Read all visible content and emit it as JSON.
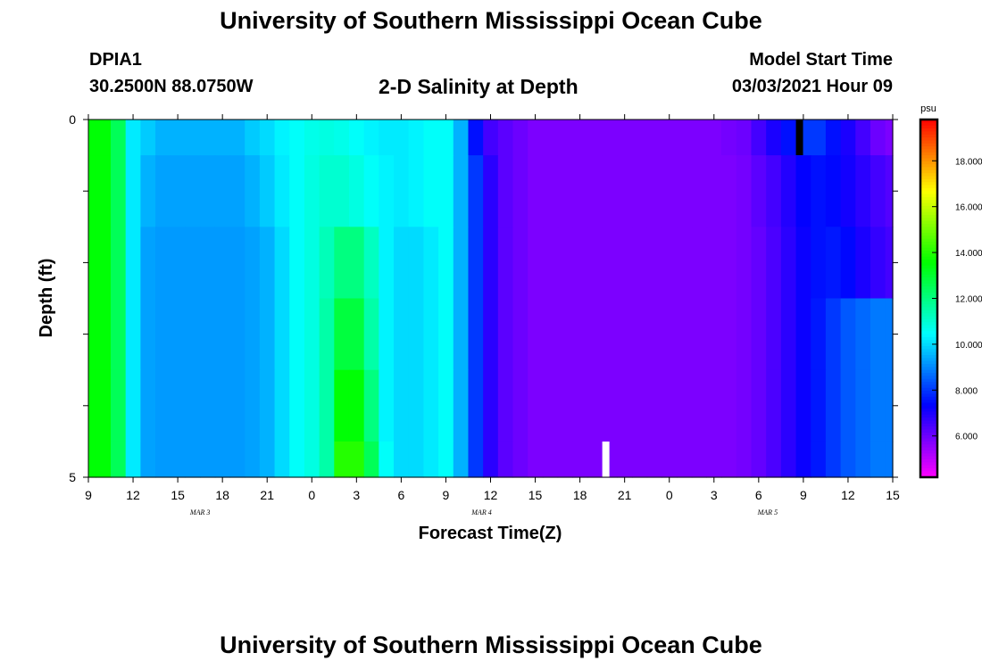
{
  "header": {
    "title": "University of Southern Mississippi Ocean Cube",
    "station": "DPIA1",
    "coords": "30.2500N 88.0750W",
    "chart_title": "2-D Salinity at Depth",
    "model_label": "Model Start Time",
    "model_time": "03/03/2021 Hour 09"
  },
  "footer": {
    "title": "University of Southern Mississippi Ocean Cube"
  },
  "chart_data": {
    "type": "heatmap",
    "title": "2-D Salinity at Depth",
    "xlabel": "Forecast Time(Z)",
    "ylabel": "Depth (ft)",
    "x_tick_labels": [
      "9",
      "12",
      "15",
      "18",
      "21",
      "0",
      "3",
      "6",
      "9",
      "12",
      "15",
      "18",
      "21",
      "0",
      "3",
      "6",
      "9",
      "12",
      "15"
    ],
    "date_labels": [
      "MAR 3",
      "MAR 4",
      "MAR 5"
    ],
    "y_tick_labels": [
      "0",
      "5"
    ],
    "ylim": [
      0,
      5
    ],
    "colorbar": {
      "unit": "psu",
      "range": [
        4.2,
        19.8
      ],
      "tick_labels": [
        "6.000",
        "8.000",
        "10.000",
        "12.000",
        "14.000",
        "16.000",
        "18.000"
      ]
    },
    "time_step_hours": 1,
    "n_times": 55,
    "depth_layers": [
      0,
      1,
      2,
      3,
      4,
      5
    ],
    "values": [
      [
        13.5,
        13.5,
        12.5,
        10.2,
        9.8,
        9.5,
        9.5,
        9.5,
        9.5,
        9.5,
        9.5,
        9.8,
        10.0,
        10.3,
        10.5,
        10.7,
        10.8,
        10.7,
        10.5,
        10.3,
        10.2,
        10.2,
        10.3,
        10.5,
        10.5,
        9.5,
        7.5,
        6.5,
        6.2,
        6.0,
        5.8,
        5.8,
        5.8,
        5.8,
        5.8,
        5.8,
        5.8,
        5.8,
        5.8,
        5.8,
        5.8,
        5.8,
        5.8,
        5.9,
        6.0,
        6.5,
        7.0,
        7.5,
        8.0,
        8.0,
        7.5,
        7.0,
        6.5,
        6.0,
        5.8
      ],
      [
        13.5,
        13.5,
        12.5,
        10.2,
        9.5,
        9.3,
        9.3,
        9.3,
        9.3,
        9.3,
        9.3,
        9.5,
        9.8,
        10.2,
        10.5,
        10.8,
        11.0,
        11.0,
        10.8,
        10.5,
        10.3,
        10.2,
        10.3,
        10.5,
        10.5,
        9.5,
        8.0,
        6.8,
        6.2,
        6.0,
        5.8,
        5.8,
        5.8,
        5.8,
        5.8,
        5.8,
        5.8,
        5.8,
        5.8,
        5.8,
        5.8,
        5.8,
        5.8,
        5.8,
        5.9,
        6.2,
        6.5,
        6.9,
        7.3,
        7.5,
        7.4,
        7.1,
        6.8,
        6.5,
        6.3
      ],
      [
        13.5,
        13.5,
        12.5,
        10.2,
        9.3,
        9.2,
        9.2,
        9.2,
        9.2,
        9.2,
        9.2,
        9.3,
        9.5,
        10.0,
        10.5,
        10.8,
        11.3,
        12.0,
        12.0,
        11.2,
        10.3,
        10.0,
        10.0,
        10.2,
        10.5,
        9.5,
        8.0,
        6.8,
        6.2,
        6.0,
        5.8,
        5.8,
        5.8,
        5.8,
        5.8,
        5.8,
        5.8,
        5.8,
        5.8,
        5.8,
        5.8,
        5.8,
        5.8,
        5.8,
        5.9,
        6.1,
        6.4,
        6.8,
        7.2,
        7.5,
        7.6,
        7.4,
        7.0,
        6.7,
        6.5
      ],
      [
        13.5,
        13.5,
        12.5,
        10.2,
        9.3,
        9.2,
        9.2,
        9.2,
        9.2,
        9.2,
        9.2,
        9.3,
        9.5,
        10.0,
        10.5,
        10.8,
        11.5,
        12.8,
        12.8,
        11.5,
        10.3,
        10.0,
        10.0,
        10.2,
        10.5,
        9.5,
        8.0,
        6.8,
        6.2,
        6.0,
        5.8,
        5.8,
        5.8,
        5.8,
        5.8,
        5.8,
        5.8,
        5.8,
        5.8,
        5.8,
        5.8,
        5.8,
        5.8,
        5.8,
        5.9,
        6.1,
        6.4,
        6.8,
        7.2,
        7.6,
        8.0,
        8.4,
        8.6,
        8.8,
        8.8
      ],
      [
        13.5,
        13.5,
        12.5,
        10.2,
        9.3,
        9.2,
        9.2,
        9.2,
        9.2,
        9.2,
        9.2,
        9.3,
        9.5,
        10.0,
        10.5,
        10.8,
        11.5,
        13.5,
        13.5,
        12.0,
        10.3,
        10.0,
        10.0,
        10.2,
        10.5,
        9.5,
        8.0,
        6.8,
        6.2,
        6.0,
        5.8,
        5.8,
        5.8,
        5.8,
        5.8,
        5.8,
        5.8,
        5.8,
        5.8,
        5.8,
        5.8,
        5.8,
        5.8,
        5.8,
        5.9,
        6.1,
        6.4,
        6.8,
        7.2,
        7.6,
        8.0,
        8.4,
        8.6,
        8.8,
        8.8
      ],
      [
        13.5,
        13.5,
        12.5,
        10.2,
        9.3,
        9.2,
        9.2,
        9.2,
        9.2,
        9.2,
        9.2,
        9.3,
        9.5,
        10.0,
        10.5,
        10.8,
        11.5,
        14.0,
        14.0,
        12.5,
        10.5,
        10.0,
        10.0,
        10.2,
        10.5,
        9.5,
        8.0,
        6.8,
        6.2,
        6.0,
        5.8,
        5.8,
        5.8,
        5.8,
        5.8,
        5.8,
        5.8,
        5.8,
        5.8,
        5.8,
        5.8,
        5.8,
        5.8,
        5.8,
        5.9,
        6.1,
        6.4,
        6.8,
        7.2,
        7.6,
        8.0,
        8.4,
        8.6,
        8.8,
        8.8
      ]
    ]
  }
}
